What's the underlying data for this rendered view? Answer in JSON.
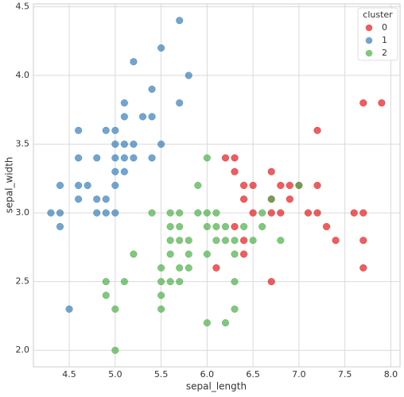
{
  "chart_data": {
    "type": "scatter",
    "x_label": "sepal_length",
    "y_label": "sepal_width",
    "legend_title": "cluster",
    "legend": "upper right",
    "grid": true,
    "xlim": [
      4.11,
      8.1
    ],
    "ylim": [
      1.88,
      4.52
    ],
    "xticks": [
      4.5,
      {
        "value": 5,
        "label": "5.0"
      },
      5.5,
      {
        "value": 6,
        "label": "6.0"
      },
      6.5,
      {
        "value": 7,
        "label": "7.0"
      },
      7.5,
      {
        "value": 8,
        "label": "8.0"
      }
    ],
    "yticks": [
      {
        "value": 2,
        "label": "2.0"
      },
      2.5,
      {
        "value": 3,
        "label": "3.0"
      },
      3.5,
      {
        "value": 4,
        "label": "4.0"
      },
      4.5
    ],
    "series": [
      {
        "name": "0",
        "color": "#e41a1c",
        "x": [
          6.1,
          6.2,
          6.3,
          6.3,
          6.3,
          6.4,
          6.4,
          6.4,
          6.4,
          6.5,
          6.5,
          6.7,
          6.7,
          6.7,
          6.7,
          6.8,
          6.8,
          6.9,
          6.9,
          7.0,
          7.1,
          7.2,
          7.2,
          7.2,
          7.3,
          7.4,
          7.6,
          7.7,
          7.7,
          7.7,
          7.7,
          7.9
        ],
        "values": [
          2.6,
          3.4,
          3.4,
          3.3,
          2.9,
          3.2,
          3.1,
          2.8,
          2.7,
          3.0,
          3.2,
          3.3,
          3.1,
          3.0,
          2.5,
          3.0,
          3.2,
          3.2,
          3.1,
          3.2,
          3.0,
          3.6,
          3.2,
          3.0,
          2.9,
          2.8,
          3.0,
          3.8,
          3.0,
          2.8,
          2.6,
          3.8
        ]
      },
      {
        "name": "1",
        "color": "#377eb8",
        "x": [
          4.3,
          4.4,
          4.4,
          4.4,
          4.5,
          4.6,
          4.6,
          4.6,
          4.6,
          4.7,
          4.8,
          4.8,
          4.8,
          4.9,
          4.9,
          4.9,
          5.0,
          5.0,
          5.0,
          5.0,
          5.0,
          5.0,
          5.1,
          5.1,
          5.1,
          5.1,
          5.1,
          5.2,
          5.2,
          5.2,
          5.3,
          5.4,
          5.4,
          5.4,
          5.5,
          5.5,
          5.7,
          5.7,
          5.8
        ],
        "values": [
          3.0,
          3.0,
          2.9,
          3.2,
          2.3,
          3.1,
          3.4,
          3.6,
          3.2,
          3.2,
          3.0,
          3.1,
          3.4,
          3.0,
          3.1,
          3.6,
          3.0,
          3.2,
          3.3,
          3.4,
          3.5,
          3.6,
          3.3,
          3.4,
          3.5,
          3.7,
          3.8,
          3.4,
          3.5,
          4.1,
          3.7,
          3.4,
          3.7,
          3.9,
          3.5,
          4.2,
          3.8,
          4.4,
          4.0
        ]
      },
      {
        "name": "2",
        "color": "#4daf4a",
        "x": [
          4.9,
          4.9,
          5.0,
          5.0,
          5.1,
          5.2,
          5.4,
          5.5,
          5.5,
          5.5,
          5.5,
          5.6,
          5.6,
          5.6,
          5.6,
          5.6,
          5.7,
          5.7,
          5.7,
          5.7,
          5.7,
          5.8,
          5.8,
          5.8,
          5.9,
          5.9,
          6.0,
          6.0,
          6.0,
          6.0,
          6.0,
          6.1,
          6.1,
          6.1,
          6.2,
          6.2,
          6.2,
          6.3,
          6.3,
          6.3,
          6.3,
          6.4,
          6.5,
          6.6,
          6.6,
          6.7,
          6.8,
          7.0
        ],
        "values": [
          2.5,
          2.4,
          2.0,
          2.3,
          2.5,
          2.7,
          3.0,
          2.3,
          2.4,
          2.5,
          2.6,
          2.5,
          2.7,
          2.8,
          2.9,
          3.0,
          2.5,
          2.6,
          2.8,
          2.9,
          3.0,
          2.6,
          2.7,
          2.8,
          3.0,
          3.2,
          2.2,
          2.7,
          2.9,
          3.0,
          3.4,
          2.8,
          2.9,
          3.0,
          2.2,
          2.8,
          2.9,
          2.3,
          2.5,
          2.7,
          2.8,
          2.9,
          2.8,
          2.9,
          3.0,
          3.1,
          2.8,
          3.2
        ]
      }
    ]
  }
}
